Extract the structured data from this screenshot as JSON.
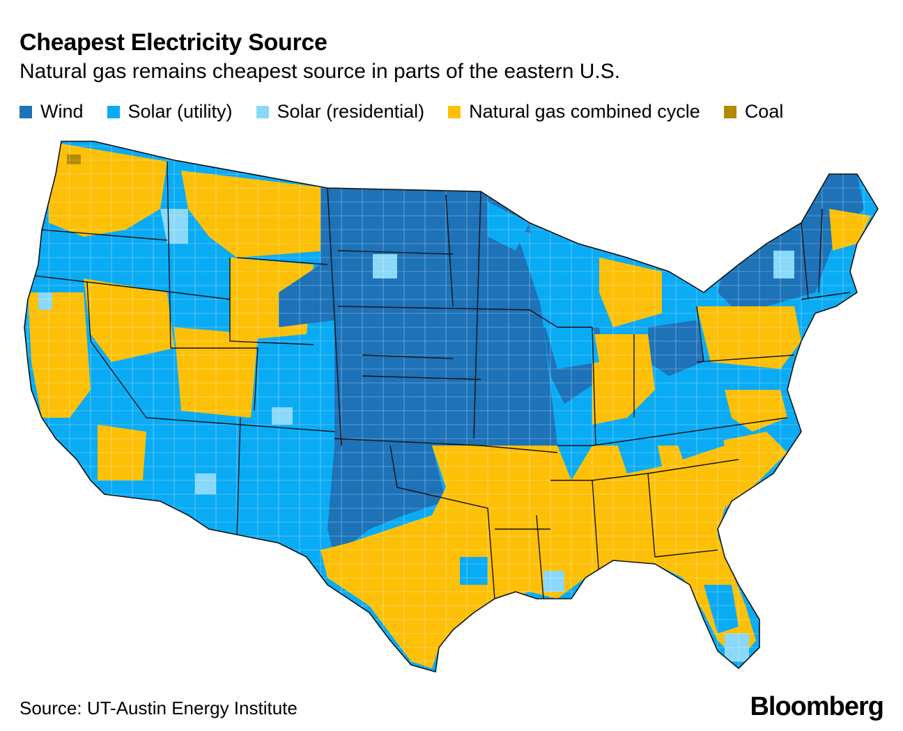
{
  "title": "Cheapest Electricity Source",
  "subtitle": "Natural gas remains cheapest source in parts of the eastern U.S.",
  "legend": [
    {
      "label": "Wind",
      "color": "#1d72b8"
    },
    {
      "label": "Solar (utility)",
      "color": "#0aabf5"
    },
    {
      "label": "Solar (residential)",
      "color": "#8ad8fa"
    },
    {
      "label": "Natural gas combined cycle",
      "color": "#fdc007"
    },
    {
      "label": "Coal",
      "color": "#b08a00"
    }
  ],
  "source": "Source: UT-Austin Energy Institute",
  "brand": "Bloomberg"
}
